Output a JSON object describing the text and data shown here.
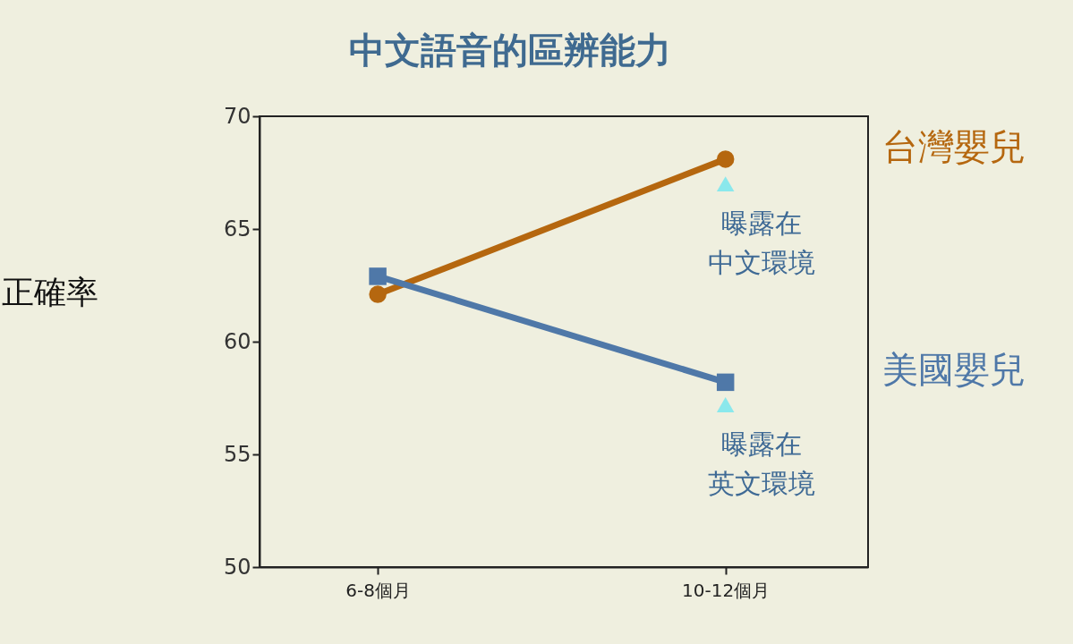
{
  "chart_data": {
    "type": "line",
    "title": "中文語音的區辨能力",
    "ylabel": "正確率",
    "categories": [
      "6-8個月",
      "10-12個月"
    ],
    "series": [
      {
        "name": "台灣嬰兒",
        "color": "#b5670f",
        "values": [
          62.1,
          68.1
        ],
        "marker": "circle"
      },
      {
        "name": "美國嬰兒",
        "color": "#4f78a8",
        "values": [
          62.9,
          58.2
        ],
        "marker": "square"
      },
      {
        "type": "scatter",
        "color": "#8ae8ec",
        "values": [
          null,
          67.0
        ],
        "marker": "triangle"
      },
      {
        "type": "scatter",
        "color": "#8ae8ec",
        "values": [
          null,
          57.2
        ],
        "marker": "triangle"
      }
    ],
    "annotations": [
      {
        "text": "曝露在中文環境",
        "x": "10-12個月",
        "y": 67.0
      },
      {
        "text": "曝露在英文環境",
        "x": "10-12個月",
        "y": 57.2
      }
    ],
    "ylim": [
      50,
      70
    ],
    "yticks": [
      50,
      55,
      60,
      65,
      70
    ],
    "grid": false,
    "legend": false
  }
}
